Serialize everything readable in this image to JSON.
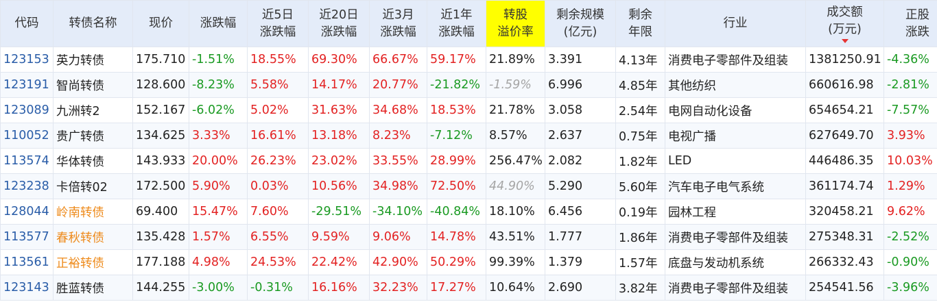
{
  "colors": {
    "header_bg": "#e4ecf9",
    "highlight_bg": "#ffff00",
    "up": "#e32222",
    "down": "#1a9a22",
    "code": "#2a5da8",
    "name_orange": "#ee8a1a",
    "grey_italic": "#a5a5a5"
  },
  "headers": [
    {
      "l1": "代码",
      "l2": ""
    },
    {
      "l1": "转债名称",
      "l2": ""
    },
    {
      "l1": "现价",
      "l2": ""
    },
    {
      "l1": "涨跌幅",
      "l2": ""
    },
    {
      "l1": "近5日",
      "l2": "涨跌幅"
    },
    {
      "l1": "近20日",
      "l2": "涨跌幅"
    },
    {
      "l1": "近3月",
      "l2": "涨跌幅"
    },
    {
      "l1": "近1年",
      "l2": "涨跌幅"
    },
    {
      "l1": "转股",
      "l2": "溢价率"
    },
    {
      "l1": "剩余规模",
      "l2": "(亿元)"
    },
    {
      "l1": "剩余",
      "l2": "年限"
    },
    {
      "l1": "行业",
      "l2": ""
    },
    {
      "l1": "成交额",
      "l2": "(万元)"
    },
    {
      "l1": "正股",
      "l2": "涨跌"
    }
  ],
  "sort": {
    "column": "成交额",
    "direction": "desc",
    "icon": "sort-desc-icon"
  },
  "rows": [
    {
      "code": "123153",
      "name": "英力转债",
      "name_orange": false,
      "price": "175.710",
      "chg": "-1.51%",
      "chg5": "18.55%",
      "chg20": "69.30%",
      "chg3m": "66.67%",
      "chg1y": "59.17%",
      "premium": "21.89%",
      "premium_grey": false,
      "scale": "3.391",
      "years": "4.13年",
      "industry": "消费电子零部件及组装",
      "turnover": "1381250.91",
      "stock_chg": "-4.36%"
    },
    {
      "code": "123191",
      "name": "智尚转债",
      "name_orange": false,
      "price": "128.600",
      "chg": "-8.23%",
      "chg5": "5.58%",
      "chg20": "14.17%",
      "chg3m": "20.77%",
      "chg1y": "-21.82%",
      "premium": "-1.59%",
      "premium_grey": true,
      "scale": "6.996",
      "years": "4.85年",
      "industry": "其他纺织",
      "turnover": "660616.98",
      "stock_chg": "-2.81%"
    },
    {
      "code": "123089",
      "name": "九洲转2",
      "name_orange": false,
      "price": "152.167",
      "chg": "-6.02%",
      "chg5": "5.02%",
      "chg20": "31.63%",
      "chg3m": "34.68%",
      "chg1y": "18.53%",
      "premium": "21.78%",
      "premium_grey": false,
      "scale": "3.058",
      "years": "2.54年",
      "industry": "电网自动化设备",
      "turnover": "654654.21",
      "stock_chg": "-7.57%"
    },
    {
      "code": "110052",
      "name": "贵广转债",
      "name_orange": false,
      "price": "134.625",
      "chg": "3.33%",
      "chg5": "16.61%",
      "chg20": "13.18%",
      "chg3m": "8.23%",
      "chg1y": "-7.12%",
      "premium": "8.57%",
      "premium_grey": false,
      "scale": "2.637",
      "years": "0.75年",
      "industry": "电视广播",
      "turnover": "627649.70",
      "stock_chg": "3.93%"
    },
    {
      "code": "113574",
      "name": "华体转债",
      "name_orange": false,
      "price": "143.933",
      "chg": "20.00%",
      "chg5": "26.23%",
      "chg20": "23.02%",
      "chg3m": "33.55%",
      "chg1y": "28.99%",
      "premium": "256.47%",
      "premium_grey": false,
      "scale": "2.082",
      "years": "1.82年",
      "industry": "LED",
      "turnover": "446486.35",
      "stock_chg": "10.03%"
    },
    {
      "code": "123238",
      "name": "卡倍转02",
      "name_orange": false,
      "price": "172.500",
      "chg": "5.90%",
      "chg5": "0.03%",
      "chg20": "10.56%",
      "chg3m": "34.98%",
      "chg1y": "72.50%",
      "premium": "44.90%",
      "premium_grey": true,
      "scale": "5.290",
      "years": "5.60年",
      "industry": "汽车电子电气系统",
      "turnover": "361174.74",
      "stock_chg": "1.29%"
    },
    {
      "code": "128044",
      "name": "岭南转债",
      "name_orange": true,
      "price": "69.400",
      "chg": "15.47%",
      "chg5": "7.60%",
      "chg20": "-29.51%",
      "chg3m": "-34.10%",
      "chg1y": "-40.84%",
      "premium": "18.10%",
      "premium_grey": false,
      "scale": "6.456",
      "years": "0.19年",
      "industry": "园林工程",
      "turnover": "320458.21",
      "stock_chg": "9.62%"
    },
    {
      "code": "113577",
      "name": "春秋转债",
      "name_orange": true,
      "price": "135.428",
      "chg": "1.57%",
      "chg5": "6.55%",
      "chg20": "9.59%",
      "chg3m": "9.06%",
      "chg1y": "14.78%",
      "premium": "43.51%",
      "premium_grey": false,
      "scale": "1.777",
      "years": "1.86年",
      "industry": "消费电子零部件及组装",
      "turnover": "275348.31",
      "stock_chg": "-2.52%"
    },
    {
      "code": "113561",
      "name": "正裕转债",
      "name_orange": true,
      "price": "177.188",
      "chg": "4.98%",
      "chg5": "24.53%",
      "chg20": "22.42%",
      "chg3m": "42.90%",
      "chg1y": "50.29%",
      "premium": "99.39%",
      "premium_grey": false,
      "scale": "1.379",
      "years": "1.57年",
      "industry": "底盘与发动机系统",
      "turnover": "266332.43",
      "stock_chg": "-0.90%"
    },
    {
      "code": "123143",
      "name": "胜蓝转债",
      "name_orange": false,
      "price": "144.255",
      "chg": "-3.00%",
      "chg5": "-0.31%",
      "chg20": "16.16%",
      "chg3m": "32.23%",
      "chg1y": "17.27%",
      "premium": "10.64%",
      "premium_grey": false,
      "scale": "2.690",
      "years": "3.82年",
      "industry": "消费电子零部件及组装",
      "turnover": "254541.56",
      "stock_chg": "-3.96%"
    }
  ]
}
